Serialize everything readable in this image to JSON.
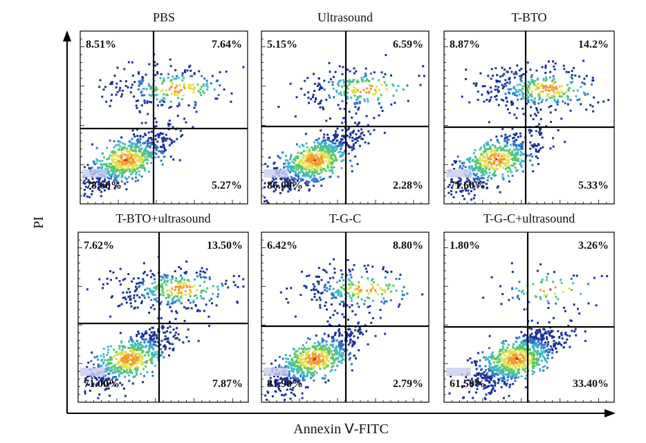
{
  "chart_data": {
    "type": "scatter",
    "subtype": "flow-cytometry-density-quadrant-plots",
    "xlabel": "Annexin Ⅴ-FITC",
    "ylabel": "PI",
    "grid": false,
    "legend": "none",
    "colormap": [
      "#1b2f9c",
      "#2f73c8",
      "#3fb8c8",
      "#55c86a",
      "#e3e04a",
      "#f59b2b",
      "#e8261d"
    ],
    "panels": [
      {
        "title": "PBS",
        "quadrants": {
          "upper_left": "8.51%",
          "upper_right": "7.64%",
          "lower_left": "78.60%",
          "lower_right": "5.27%"
        },
        "values": {
          "upper_left": 8.51,
          "upper_right": 7.64,
          "lower_left": 78.6,
          "lower_right": 5.27
        }
      },
      {
        "title": "Ultrasound",
        "quadrants": {
          "upper_left": "5.15%",
          "upper_right": "6.59%",
          "lower_left": "86.00%",
          "lower_right": "2.28%"
        },
        "values": {
          "upper_left": 5.15,
          "upper_right": 6.59,
          "lower_left": 86.0,
          "lower_right": 2.28
        }
      },
      {
        "title": "T-BTO",
        "quadrants": {
          "upper_left": "8.87%",
          "upper_right": "14.2%",
          "lower_left": "71.60%",
          "lower_right": "5.33%"
        },
        "values": {
          "upper_left": 8.87,
          "upper_right": 14.2,
          "lower_left": 71.6,
          "lower_right": 5.33
        }
      },
      {
        "title": "T-BTO+ultrasound",
        "quadrants": {
          "upper_left": "7.62%",
          "upper_right": "13.50%",
          "lower_left": "71.00%",
          "lower_right": "7.87%"
        },
        "values": {
          "upper_left": 7.62,
          "upper_right": 13.5,
          "lower_left": 71.0,
          "lower_right": 7.87
        }
      },
      {
        "title": "T-G-C",
        "quadrants": {
          "upper_left": "6.42%",
          "upper_right": "8.80%",
          "lower_left": "81.90%",
          "lower_right": "2.79%"
        },
        "values": {
          "upper_left": 6.42,
          "upper_right": 8.8,
          "lower_left": 81.9,
          "lower_right": 2.79
        }
      },
      {
        "title": "T-G-C+ultrasound",
        "quadrants": {
          "upper_left": "1.80%",
          "upper_right": "3.26%",
          "lower_left": "61.50%",
          "lower_right": "33.40%"
        },
        "values": {
          "upper_left": 1.8,
          "upper_right": 3.26,
          "lower_left": 61.5,
          "lower_right": 33.4
        }
      }
    ]
  }
}
